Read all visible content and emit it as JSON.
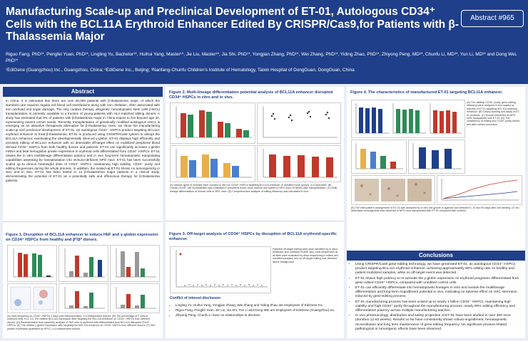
{
  "header": {
    "title": "Manufacturing Scale-up and Preclinical Development of ET-01, Autologous CD34⁺ Cells with the BCL11A Erythroid Enhancer Edited By CRISPR/Cas9,for Patients with β-Thalassemia Major",
    "authors": "Riguo Fang, PhD¹*, Pengfei Yuan, PhD¹*, Lingling Yu, Bachelor¹*, Huihui Yang, Master¹*, Jie Liu, Master¹*, Jia Shi, PhD¹*, Yongjian Zhang, PhD¹*, Wei Zhang, PhD¹*, Yiding Zhao, PhD¹*, Zhiyong Peng, MD²*, Chunfu Li, MD³*, Yun Li, MD³* and Dong Wei, PhD¹*",
    "affiliations": "¹EdiGene (Guangzhou) Inc., Guangzhou, China; ²EdiGene Inc., Beijing; ³Nanfang-Chunfu Children's Institute of Hematology, Taixin Hospital of DongGuan, DongGuan, China",
    "badge": "Abstract #965"
  },
  "abstract": {
    "heading": "Abstract",
    "text": "In China, it is estimated that there are over 50,000 patients with β-thalassemia major, of which the standard care requires regular red blood cell transfusions along with iron chelation, often associated with iron overload and organ damage. The only curative therapy, allogeneic hematopoietic stem cells (HSCs) transplantation, is primarily available to a fraction of young patients with HLA-matched sibling donors. A study has estimated that 3% of patients with β-thalassemia major in China expect to live beyond age 20, representing severe unmet needs. Recently, transplantation of genetically modified autologous HSCs is emerging as an attractive therapeutic alternative for β-thalassemia. Here, we show the manufacturing scale-up and preclinical development of ET-01, an autologous CD34⁺ HSPCs product targeting BCL11A erythroid enhancer to treat β-thalassemia. ET-01 is produced using CRISPR/Cas9 system to disrupt the BCL11A enhancer, reactivating the developmentally silenced γ-globin. ET-01 displays high efficiently and precisely editing of BCL11A enhancer with no detectable off-target effect on mobilized peripheral blood derived CD34⁺ HSPCs from both healthy donors and patients. ET-01 can significantly increase γ-globin mRNA and fetal hemoglobin protein expression in erythroid cells differentiated from CD34⁺ HSPCs. ET-01 retains the in vitro multilineage differentiation potency and in vivo long-term hematopoietic repopulating capabilities assessing by transplantation into immune-deficient NPG mice. ET-01 has been successfully scaled up to clinical meaningful dose of CD34⁺ HSPCs, maintaining high viability, CD34⁺ purity and editing frequencies during the whole process. In addition, the scaled-up ET-01 shows no tumorigenicity in vitro and in vivo. ET-01 has been tested in 12 β-thalassemia major patients in a clinical study, demonstrating the potential of ET-01 as a potentially safe and efficacious therapy for β-thalassemia patients."
  },
  "fig1": {
    "title": "Figure 1. Disruption of BCL11A enhancer to induce HbF and γ-globin expression on CD34⁺ HSPCs from healthy and β⁰/β⁰ donors.",
    "notes": "(A) Indel frequency on CD34⁺ HSPCs 2 days post electroporation, n=3 independent donors. (B) The percentage of F cells in erythroid cells, n=3. (C) The relative BCL11A expression after targeting the BCL11A enhancer on CD34⁺ HSPCs from different donors. (D) Representative flow cytometry analysis of HbF cells in erythroid cells differentiated from BCL11A disrupted CD34⁺ HSPCs. (E) The relative γ-globin expression after targeting the BCL11A enhancer on CD34⁺ HSPCs from different donors. (F) HbF protein expression quantified by HPLC, n=3 independent donors."
  },
  "fig2": {
    "title": "Figure 2. Multi-lineage differentiation potential analysis of BCL11A enhancer disrupted CD34⁺ HSPCs in vitro and in vivo.",
    "notes": "(A) Various types of colonies were counted in vitro for CD34⁺ HSPCs targeting BCL11A enhancer or unedited mock groups, n=3 replicates. (B) Human CD45⁺ cell reconstitution was evaluated in peripheral blood, bone marrow and spleen in NPG mice 16 weeks after transplantation. (C) Multi-lineage differentiation of human cells in NPG mice. (D) Comprehensive analysis of editing efficiency was calculated in vivo."
  },
  "fig3": {
    "title": "Figure 3. Off-target analysis of CD34⁺ HSPCs by disruption of BCL11A erythroid-specific enhancer.",
    "notes": "Potential off-target editing sites were identified by in silico prediction and unbiased GUIDE-seq. Indel frequencies at all sites were evaluated by deep sequencing in edited and unedited samples, and no off-target editing was detected above background."
  },
  "coi": {
    "heading": "Conflict of interest disclosure:",
    "items": [
      "Lingling Yu, Huihui Yang, Yongjian Zhang, Wei Zhang and Yiding Zhao are employees of EdiGene Inc.",
      "Riguo Fang, Pengfei Yuan, Jie Liu, Jia Shi, Yun Li and Dong Wei are employees of EdiGene (Guangzhou) Inc.",
      "Zhiyong Peng, Chunfu Li have no relationships to disclose."
    ]
  },
  "fig4": {
    "title": "Figure 4. The characteristics of manufactured ET-01 targeting BCL11A enhancer.",
    "notes_right": "(A) The viability, CD34⁺ purity, gene-editing efficiency were analyzed in four scaled-up batches of ET-01 targeting BCL11A erythroid enhancer. (B) Colony-forming unit assay of ET-01 products. (C) Human chimerism in NPG mice transplanted with ET-01. (D) The consistency of editing and CD34⁺ purity before and after certain procedure.",
    "notes_bottom": "(E) The indel pattern arrangement of ET-01 was analyzed by in vitro cell growth in agarose and detected 0, 30 and 90 days after cell seeding. (F) No detectable tumorigenicity was observed in NPG mice transplanted with ET-01 compared with controls."
  },
  "conclusions": {
    "heading": "Conclusions",
    "items": [
      "Using CRISPR/Cas9 gene-editing technology, we have generated ET-01, an autologous CD34⁺ HSPCs product targeting BCL11A erythroid enhancer, achieving approximately 80% editing rate on healthy and patient mobilized samples, while no off-target event was detected.",
      "ET-01 shows high potency to re-activate the γ-globin expression on erythroid progenies differentiated from gene edited CD34⁺ HSPCs, compared with unedited control cells.",
      "ET-01 can efficiently differentiate into hematopoietic lineages in vitro and sustain the multilineage differentiation and long-term engraftment potential in vivo, indicating no adverse effect on HSC stemness induced by gene-editing process.",
      "ET-01 manufacturing process has been scaled up to nearly 1 billion CD34⁺ HSPCs, maintaining high viability and high CD34⁺ purity throughout the manufacturing process; nearly 80% editing efficiency and differentiation potency across multiple manufacturing batches.",
      "In vivo pharmacology, distribution and safety properties of ET-01 have been studied in over 400 mice (duration 12-52 weeks). Results so far have consistently shown robust engraftment, hematopoietic reconstitution and long term maintenance of gene editing frequency. No significant product-related pathological or tumorigenic effects have been observed."
    ]
  },
  "colors": {
    "primary": "#1f3f8a",
    "accent_red": "#c0392b",
    "accent_green": "#2e8b57",
    "background": "#e9eef7"
  }
}
